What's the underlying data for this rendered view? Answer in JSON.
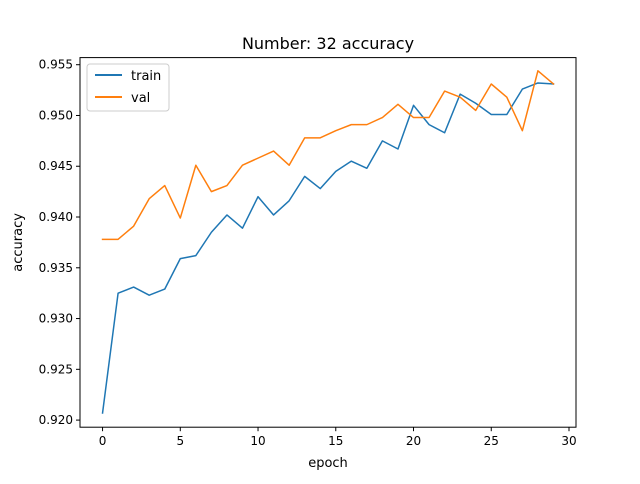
{
  "chart_data": {
    "type": "line",
    "title": "Number: 32 accuracy",
    "xlabel": "epoch",
    "ylabel": "accuracy",
    "xlim": [
      -1.45,
      30.45
    ],
    "ylim": [
      0.9193,
      0.9557
    ],
    "xticks": [
      0,
      5,
      10,
      15,
      20,
      25,
      30
    ],
    "yticks": [
      0.92,
      0.925,
      0.93,
      0.935,
      0.94,
      0.945,
      0.95,
      0.955
    ],
    "xtick_labels": [
      "0",
      "5",
      "10",
      "15",
      "20",
      "25",
      "30"
    ],
    "ytick_labels": [
      "0.920",
      "0.925",
      "0.930",
      "0.935",
      "0.940",
      "0.945",
      "0.950",
      "0.955"
    ],
    "grid": false,
    "legend_position": "top-left",
    "x": [
      0,
      1,
      2,
      3,
      4,
      5,
      6,
      7,
      8,
      9,
      10,
      11,
      12,
      13,
      14,
      15,
      16,
      17,
      18,
      19,
      20,
      21,
      22,
      23,
      24,
      25,
      26,
      27,
      28,
      29
    ],
    "series": [
      {
        "name": "train",
        "color": "#1f77b4",
        "values": [
          0.9207,
          0.9325,
          0.9331,
          0.9323,
          0.9329,
          0.9359,
          0.9362,
          0.9385,
          0.9402,
          0.9389,
          0.942,
          0.9402,
          0.9416,
          0.944,
          0.9428,
          0.9445,
          0.9455,
          0.9448,
          0.9475,
          0.9467,
          0.951,
          0.9491,
          0.9483,
          0.9521,
          0.9512,
          0.9501,
          0.9501,
          0.9526,
          0.9532,
          0.9531
        ]
      },
      {
        "name": "val",
        "color": "#ff7f0e",
        "values": [
          0.9378,
          0.9378,
          0.9391,
          0.9418,
          0.9431,
          0.9399,
          0.9451,
          0.9425,
          0.9431,
          0.9451,
          0.9458,
          0.9465,
          0.9451,
          0.9478,
          0.9478,
          0.9485,
          0.9491,
          0.9491,
          0.9498,
          0.9511,
          0.9498,
          0.9498,
          0.9524,
          0.9518,
          0.9505,
          0.9531,
          0.9518,
          0.9485,
          0.9544,
          0.9531
        ]
      }
    ]
  }
}
